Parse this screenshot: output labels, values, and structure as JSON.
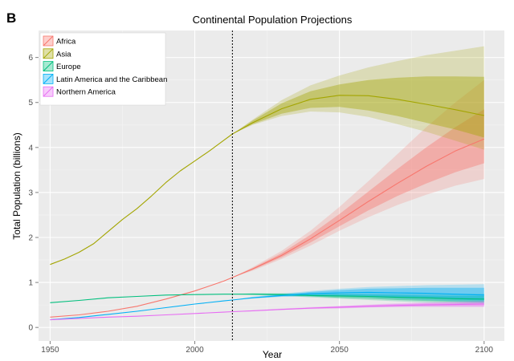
{
  "panel_label": "B",
  "chart_data": {
    "type": "line",
    "title": "Continental Population Projections",
    "xlabel": "Year",
    "ylabel": "Total Population (billions)",
    "xlim": [
      1946,
      2107
    ],
    "ylim": [
      -0.3,
      6.6
    ],
    "xticks": [
      1950,
      2000,
      2050,
      2100
    ],
    "yticks": [
      0,
      1,
      2,
      3,
      4,
      5,
      6
    ],
    "grid": true,
    "legend_position": "top-left",
    "divider_year": 2013,
    "band_years": [
      2013,
      2020,
      2030,
      2040,
      2050,
      2060,
      2070,
      2080,
      2090,
      2100
    ],
    "series": [
      {
        "name": "Africa",
        "color": "#f8766d",
        "x": [
          1950,
          1960,
          1970,
          1980,
          1990,
          2000,
          2010,
          2013,
          2020,
          2030,
          2040,
          2050,
          2060,
          2070,
          2080,
          2090,
          2100
        ],
        "y": [
          0.23,
          0.28,
          0.36,
          0.47,
          0.63,
          0.81,
          1.03,
          1.11,
          1.3,
          1.6,
          1.97,
          2.38,
          2.8,
          3.2,
          3.58,
          3.92,
          4.19
        ],
        "inner_band": {
          "lower": [
            1.11,
            1.28,
            1.56,
            1.89,
            2.25,
            2.6,
            2.92,
            3.2,
            3.45,
            3.65
          ],
          "upper": [
            1.11,
            1.32,
            1.65,
            2.06,
            2.52,
            3.02,
            3.52,
            4.0,
            4.45,
            4.85
          ]
        },
        "outer_band": {
          "lower": [
            1.11,
            1.26,
            1.52,
            1.82,
            2.15,
            2.45,
            2.72,
            2.95,
            3.15,
            3.3
          ],
          "upper": [
            1.11,
            1.34,
            1.7,
            2.15,
            2.68,
            3.25,
            3.85,
            4.45,
            5.0,
            5.5
          ]
        }
      },
      {
        "name": "Asia",
        "color": "#a3a500",
        "x": [
          1950,
          1955,
          1960,
          1965,
          1970,
          1975,
          1980,
          1985,
          1990,
          1995,
          2000,
          2005,
          2010,
          2013,
          2020,
          2030,
          2040,
          2050,
          2060,
          2070,
          2080,
          2090,
          2100
        ],
        "y": [
          1.4,
          1.52,
          1.67,
          1.86,
          2.13,
          2.4,
          2.64,
          2.92,
          3.22,
          3.48,
          3.7,
          3.92,
          4.16,
          4.3,
          4.55,
          4.86,
          5.07,
          5.16,
          5.15,
          5.07,
          4.96,
          4.84,
          4.71
        ],
        "inner_band": {
          "lower": [
            4.3,
            4.52,
            4.75,
            4.88,
            4.9,
            4.82,
            4.7,
            4.55,
            4.4,
            4.22
          ],
          "upper": [
            4.3,
            4.6,
            4.98,
            5.25,
            5.4,
            5.5,
            5.55,
            5.58,
            5.58,
            5.57
          ]
        },
        "outer_band": {
          "lower": [
            4.3,
            4.5,
            4.7,
            4.8,
            4.78,
            4.68,
            4.52,
            4.35,
            4.15,
            3.95
          ],
          "upper": [
            4.3,
            4.62,
            5.05,
            5.38,
            5.6,
            5.78,
            5.92,
            6.05,
            6.15,
            6.25
          ]
        }
      },
      {
        "name": "Europe",
        "color": "#00bf7d",
        "x": [
          1950,
          1960,
          1970,
          1980,
          1990,
          2000,
          2010,
          2013,
          2020,
          2030,
          2040,
          2050,
          2060,
          2070,
          2080,
          2090,
          2100
        ],
        "y": [
          0.55,
          0.6,
          0.66,
          0.69,
          0.72,
          0.73,
          0.74,
          0.74,
          0.74,
          0.73,
          0.71,
          0.7,
          0.69,
          0.67,
          0.66,
          0.64,
          0.63
        ],
        "inner_band": {
          "lower": [
            0.74,
            0.73,
            0.71,
            0.69,
            0.66,
            0.64,
            0.61,
            0.59,
            0.57,
            0.55
          ],
          "upper": [
            0.74,
            0.75,
            0.75,
            0.74,
            0.74,
            0.73,
            0.72,
            0.71,
            0.7,
            0.7
          ]
        },
        "outer_band": {
          "lower": [
            0.74,
            0.72,
            0.7,
            0.67,
            0.64,
            0.61,
            0.58,
            0.55,
            0.53,
            0.51
          ],
          "upper": [
            0.74,
            0.76,
            0.76,
            0.76,
            0.76,
            0.75,
            0.75,
            0.75,
            0.75,
            0.75
          ]
        }
      },
      {
        "name": "Latin America and the Caribbean",
        "color": "#00b0f6",
        "x": [
          1950,
          1960,
          1970,
          1980,
          1990,
          2000,
          2010,
          2013,
          2020,
          2030,
          2040,
          2050,
          2060,
          2070,
          2080,
          2090,
          2100
        ],
        "y": [
          0.17,
          0.22,
          0.29,
          0.36,
          0.44,
          0.52,
          0.59,
          0.61,
          0.66,
          0.71,
          0.75,
          0.77,
          0.78,
          0.77,
          0.76,
          0.74,
          0.72
        ],
        "inner_band": {
          "lower": [
            0.61,
            0.65,
            0.69,
            0.71,
            0.71,
            0.7,
            0.67,
            0.65,
            0.62,
            0.6
          ],
          "upper": [
            0.61,
            0.67,
            0.73,
            0.79,
            0.83,
            0.86,
            0.87,
            0.88,
            0.88,
            0.88
          ]
        },
        "outer_band": {
          "lower": [
            0.61,
            0.64,
            0.68,
            0.69,
            0.69,
            0.67,
            0.64,
            0.61,
            0.58,
            0.55
          ],
          "upper": [
            0.61,
            0.68,
            0.75,
            0.81,
            0.86,
            0.9,
            0.92,
            0.94,
            0.95,
            0.96
          ]
        }
      },
      {
        "name": "Northern America",
        "color": "#e76bf3",
        "x": [
          1950,
          1960,
          1970,
          1980,
          1990,
          2000,
          2010,
          2013,
          2020,
          2030,
          2040,
          2050,
          2060,
          2070,
          2080,
          2090,
          2100
        ],
        "y": [
          0.17,
          0.2,
          0.23,
          0.25,
          0.28,
          0.31,
          0.34,
          0.35,
          0.37,
          0.4,
          0.43,
          0.45,
          0.47,
          0.49,
          0.5,
          0.51,
          0.52
        ],
        "inner_band": {
          "lower": [
            0.35,
            0.37,
            0.39,
            0.42,
            0.43,
            0.45,
            0.46,
            0.47,
            0.47,
            0.47
          ],
          "upper": [
            0.35,
            0.37,
            0.41,
            0.44,
            0.47,
            0.5,
            0.52,
            0.54,
            0.55,
            0.57
          ]
        },
        "outer_band": {
          "lower": [
            0.35,
            0.36,
            0.39,
            0.41,
            0.42,
            0.44,
            0.45,
            0.45,
            0.45,
            0.45
          ],
          "upper": [
            0.35,
            0.38,
            0.42,
            0.45,
            0.48,
            0.51,
            0.54,
            0.56,
            0.58,
            0.6
          ]
        }
      }
    ]
  }
}
